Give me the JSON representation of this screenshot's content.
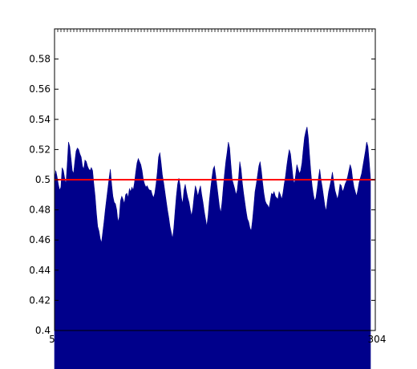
{
  "chart_data": {
    "type": "area",
    "title": "",
    "xlabel": "",
    "ylabel": "",
    "xlim": [
      1,
      316
    ],
    "ylim": [
      0.4,
      0.6
    ],
    "yticks": [
      0.4,
      0.42,
      0.44,
      0.46,
      0.48,
      0.5,
      0.52,
      0.54,
      0.56,
      0.58
    ],
    "ytick_labels": [
      "0.4",
      "0.42",
      "0.44",
      "0.46",
      "0.48",
      "0.5",
      "0.52",
      "0.54",
      "0.56",
      "0.58"
    ],
    "xtick_labels_visible": [
      "5",
      "304"
    ],
    "grid": false,
    "legend": "none",
    "fill_color": "#00008b",
    "reference_line": {
      "y": 0.5,
      "color": "#ff0000"
    },
    "series": [
      {
        "values": [
          0.5,
          0.506,
          0.502,
          0.497,
          0.493,
          0.495,
          0.508,
          0.506,
          0.501,
          0.497,
          0.51,
          0.525,
          0.522,
          0.514,
          0.506,
          0.504,
          0.512,
          0.519,
          0.521,
          0.52,
          0.517,
          0.515,
          0.509,
          0.507,
          0.513,
          0.512,
          0.509,
          0.507,
          0.506,
          0.508,
          0.506,
          0.497,
          0.489,
          0.478,
          0.469,
          0.466,
          0.461,
          0.458,
          0.465,
          0.472,
          0.48,
          0.487,
          0.494,
          0.501,
          0.507,
          0.497,
          0.489,
          0.485,
          0.484,
          0.48,
          0.472,
          0.475,
          0.486,
          0.489,
          0.487,
          0.484,
          0.49,
          0.491,
          0.488,
          0.494,
          0.492,
          0.495,
          0.493,
          0.498,
          0.505,
          0.511,
          0.514,
          0.512,
          0.51,
          0.506,
          0.5,
          0.497,
          0.495,
          0.496,
          0.494,
          0.493,
          0.493,
          0.49,
          0.488,
          0.491,
          0.497,
          0.505,
          0.515,
          0.518,
          0.511,
          0.503,
          0.498,
          0.492,
          0.486,
          0.48,
          0.475,
          0.469,
          0.465,
          0.461,
          0.468,
          0.479,
          0.489,
          0.497,
          0.501,
          0.496,
          0.488,
          0.484,
          0.493,
          0.497,
          0.492,
          0.488,
          0.485,
          0.48,
          0.476,
          0.481,
          0.489,
          0.496,
          0.493,
          0.489,
          0.493,
          0.496,
          0.49,
          0.485,
          0.479,
          0.474,
          0.469,
          0.476,
          0.486,
          0.494,
          0.501,
          0.507,
          0.509,
          0.503,
          0.496,
          0.489,
          0.482,
          0.478,
          0.485,
          0.495,
          0.504,
          0.512,
          0.518,
          0.525,
          0.521,
          0.51,
          0.5,
          0.497,
          0.494,
          0.49,
          0.493,
          0.501,
          0.512,
          0.507,
          0.498,
          0.491,
          0.485,
          0.479,
          0.474,
          0.472,
          0.468,
          0.466,
          0.473,
          0.482,
          0.492,
          0.497,
          0.503,
          0.509,
          0.512,
          0.506,
          0.498,
          0.491,
          0.486,
          0.484,
          0.483,
          0.481,
          0.486,
          0.491,
          0.49,
          0.492,
          0.489,
          0.488,
          0.487,
          0.492,
          0.49,
          0.487,
          0.491,
          0.497,
          0.502,
          0.509,
          0.515,
          0.52,
          0.517,
          0.509,
          0.501,
          0.497,
          0.503,
          0.51,
          0.507,
          0.504,
          0.506,
          0.511,
          0.52,
          0.528,
          0.532,
          0.535,
          0.528,
          0.516,
          0.505,
          0.496,
          0.49,
          0.486,
          0.488,
          0.494,
          0.501,
          0.507,
          0.5,
          0.495,
          0.489,
          0.483,
          0.479,
          0.486,
          0.492,
          0.496,
          0.5,
          0.505,
          0.499,
          0.493,
          0.49,
          0.487,
          0.491,
          0.497,
          0.496,
          0.492,
          0.494,
          0.497,
          0.499,
          0.502,
          0.506,
          0.51,
          0.507,
          0.5,
          0.495,
          0.492,
          0.489,
          0.493,
          0.498,
          0.501,
          0.504,
          0.509,
          0.514,
          0.519,
          0.525,
          0.522,
          0.512,
          0.501
        ]
      }
    ]
  }
}
